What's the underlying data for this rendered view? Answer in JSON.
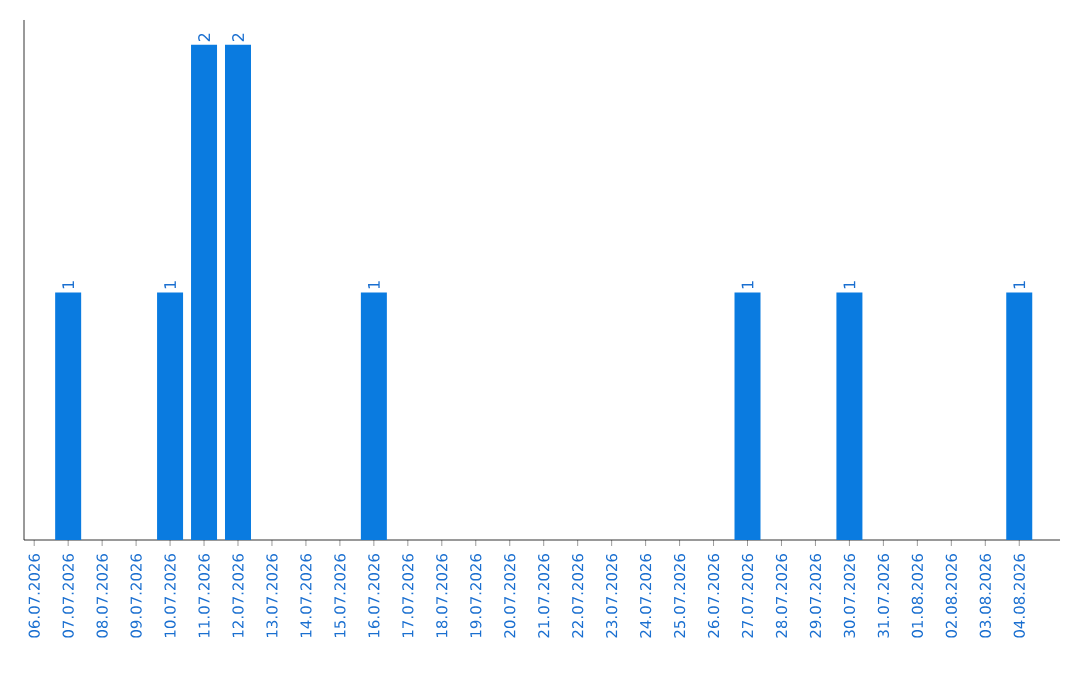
{
  "chart_data": {
    "type": "bar",
    "categories": [
      "06.07.2026",
      "07.07.2026",
      "08.07.2026",
      "09.07.2026",
      "10.07.2026",
      "11.07.2026",
      "12.07.2026",
      "13.07.2026",
      "14.07.2026",
      "15.07.2026",
      "16.07.2026",
      "17.07.2026",
      "18.07.2026",
      "19.07.2026",
      "20.07.2026",
      "21.07.2026",
      "22.07.2026",
      "23.07.2026",
      "24.07.2026",
      "25.07.2026",
      "26.07.2026",
      "27.07.2026",
      "28.07.2026",
      "29.07.2026",
      "30.07.2026",
      "31.07.2026",
      "01.08.2026",
      "02.08.2026",
      "03.08.2026",
      "04.08.2026"
    ],
    "values": [
      0,
      1,
      0,
      0,
      1,
      2,
      2,
      0,
      0,
      0,
      1,
      0,
      0,
      0,
      0,
      0,
      0,
      0,
      0,
      0,
      0,
      1,
      0,
      0,
      1,
      0,
      0,
      0,
      0,
      1
    ],
    "value_labels": [
      null,
      "1",
      null,
      null,
      "1",
      "2",
      "2",
      null,
      null,
      null,
      "1",
      null,
      null,
      null,
      null,
      null,
      null,
      null,
      null,
      null,
      null,
      "1",
      null,
      null,
      "1",
      null,
      null,
      null,
      null,
      "1"
    ],
    "color": "#0a7be0",
    "tick_labels": "x"
  }
}
